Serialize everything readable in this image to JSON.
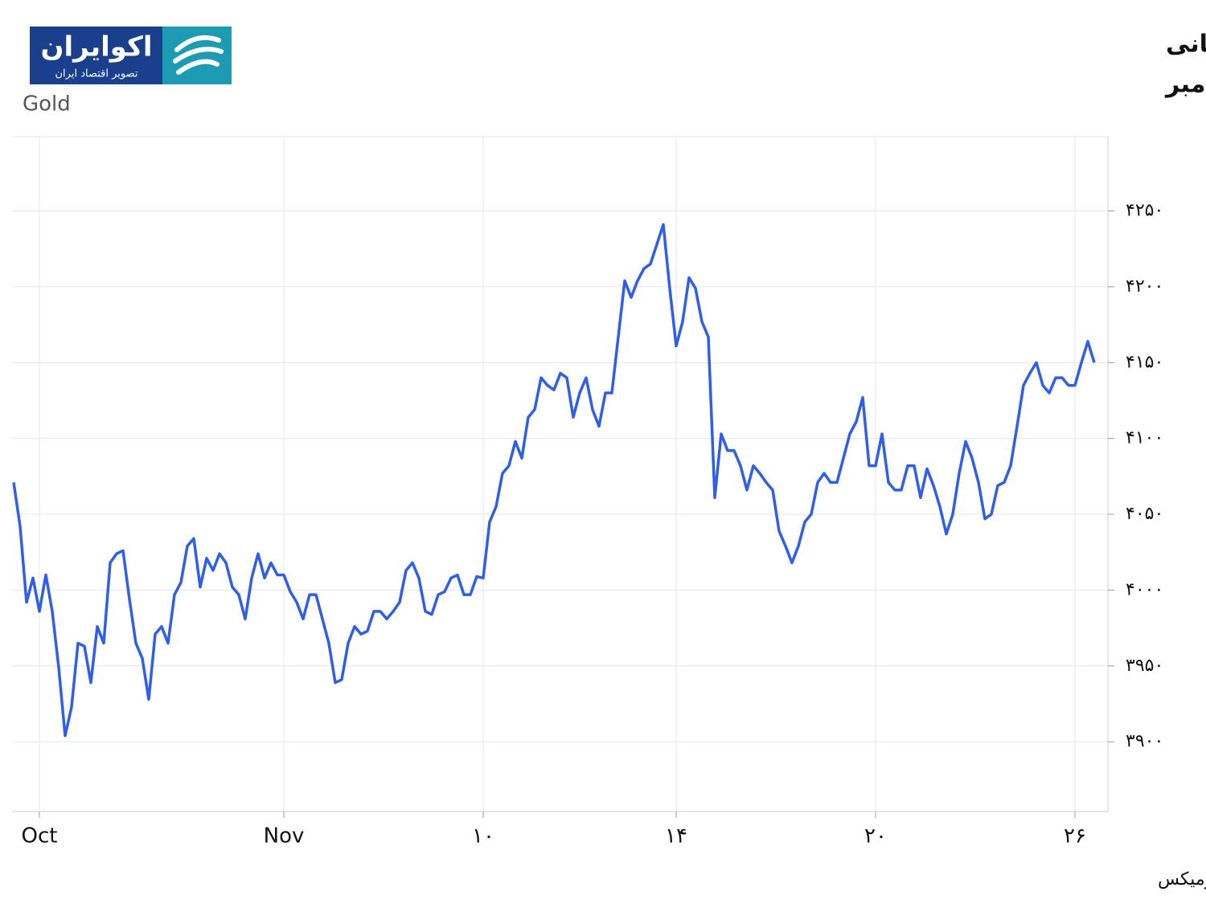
{
  "logo": {
    "name": "اکوایران",
    "tagline": "تصویر اقتصاد ایران"
  },
  "source": "منبع: تریدینگ اکونومیکس",
  "chart_data": {
    "type": "line",
    "title": "رشد طلای جهانی",
    "subtitle": "با افزایش احتمال کاهش نرخ بهره فدرال رزرو در دسامبر",
    "y_label": "Gold",
    "color": "#2f5fe8",
    "grid": true,
    "categories": [
      null,
      null,
      null,
      null,
      "Oct",
      null,
      null,
      null,
      null,
      null,
      null,
      null,
      null,
      null,
      null,
      null,
      null,
      null,
      null,
      null,
      null,
      null,
      null,
      null,
      null,
      null,
      null,
      null,
      null,
      null,
      null,
      null,
      null,
      null,
      null,
      null,
      null,
      null,
      null,
      null,
      null,
      null,
      "Nov",
      null,
      null,
      null,
      null,
      null,
      null,
      null,
      null,
      null,
      null,
      null,
      null,
      null,
      null,
      null,
      null,
      null,
      null,
      null,
      null,
      null,
      null,
      null,
      null,
      null,
      null,
      null,
      null,
      null,
      null,
      "۱۰",
      null,
      null,
      null,
      null,
      null,
      null,
      null,
      null,
      null,
      null,
      null,
      null,
      null,
      null,
      null,
      null,
      null,
      null,
      null,
      null,
      null,
      null,
      null,
      null,
      null,
      null,
      null,
      null,
      null,
      "۱۴",
      null,
      null,
      null,
      null,
      null,
      null,
      null,
      null,
      null,
      null,
      null,
      null,
      null,
      null,
      null,
      null,
      null,
      null,
      null,
      null,
      null,
      null,
      null,
      null,
      null,
      null,
      null,
      null,
      null,
      null,
      "۲۰",
      null,
      null,
      null,
      null,
      null,
      null,
      null,
      null,
      null,
      null,
      null,
      null,
      null,
      null,
      null,
      null,
      null,
      null,
      null,
      null,
      null,
      null,
      null,
      null,
      null,
      null,
      null,
      null,
      null,
      null,
      "۲۶",
      null,
      null,
      null
    ],
    "values": [
      4071,
      4042,
      3992,
      4008,
      3986,
      4010,
      3986,
      3949,
      3904,
      3923,
      3965,
      3963,
      3939,
      3976,
      3965,
      4018,
      4024,
      4026,
      3994,
      3965,
      3955,
      3928,
      3971,
      3976,
      3965,
      3997,
      4005,
      4029,
      4034,
      4002,
      4021,
      4013,
      4024,
      4018,
      4002,
      3997,
      3981,
      4008,
      4024,
      4008,
      4018,
      4010,
      4010,
      3999,
      3992,
      3981,
      3997,
      3997,
      3981,
      3965,
      3939,
      3941,
      3965,
      3976,
      3971,
      3973,
      3986,
      3986,
      3981,
      3986,
      3992,
      4013,
      4018,
      4008,
      3986,
      3984,
      3997,
      3999,
      4008,
      4010,
      3997,
      3997,
      4009,
      4008,
      4045,
      4055,
      4077,
      4082,
      4098,
      4087,
      4114,
      4119,
      4140,
      4135,
      4132,
      4143,
      4140,
      4114,
      4130,
      4140,
      4119,
      4108,
      4130,
      4130,
      4167,
      4204,
      4193,
      4204,
      4212,
      4215,
      4228,
      4241,
      4199,
      4161,
      4177,
      4206,
      4199,
      4177,
      4167,
      4061,
      4103,
      4092,
      4092,
      4082,
      4066,
      4082,
      4077,
      4071,
      4066,
      4039,
      4029,
      4018,
      4029,
      4045,
      4050,
      4071,
      4077,
      4071,
      4071,
      4087,
      4103,
      4111,
      4127,
      4082,
      4082,
      4103,
      4071,
      4066,
      4066,
      4082,
      4082,
      4061,
      4080,
      4069,
      4055,
      4037,
      4050,
      4077,
      4098,
      4087,
      4071,
      4047,
      4050,
      4069,
      4071,
      4082,
      4108,
      4135,
      4143,
      4150,
      4135,
      4130,
      4140,
      4140,
      4135,
      4135,
      4150,
      4164,
      4150
    ],
    "ylim": [
      3854,
      4299
    ],
    "yticks": [
      {
        "value": 3900,
        "label": "۳۹۰۰"
      },
      {
        "value": 3950,
        "label": "۳۹۵۰"
      },
      {
        "value": 4000,
        "label": "۴۰۰۰"
      },
      {
        "value": 4050,
        "label": "۴۰۵۰"
      },
      {
        "value": 4100,
        "label": "۴۱۰۰"
      },
      {
        "value": 4150,
        "label": "۴۱۵۰"
      },
      {
        "value": 4200,
        "label": "۴۲۰۰"
      },
      {
        "value": 4250,
        "label": "۴۲۵۰"
      }
    ]
  }
}
